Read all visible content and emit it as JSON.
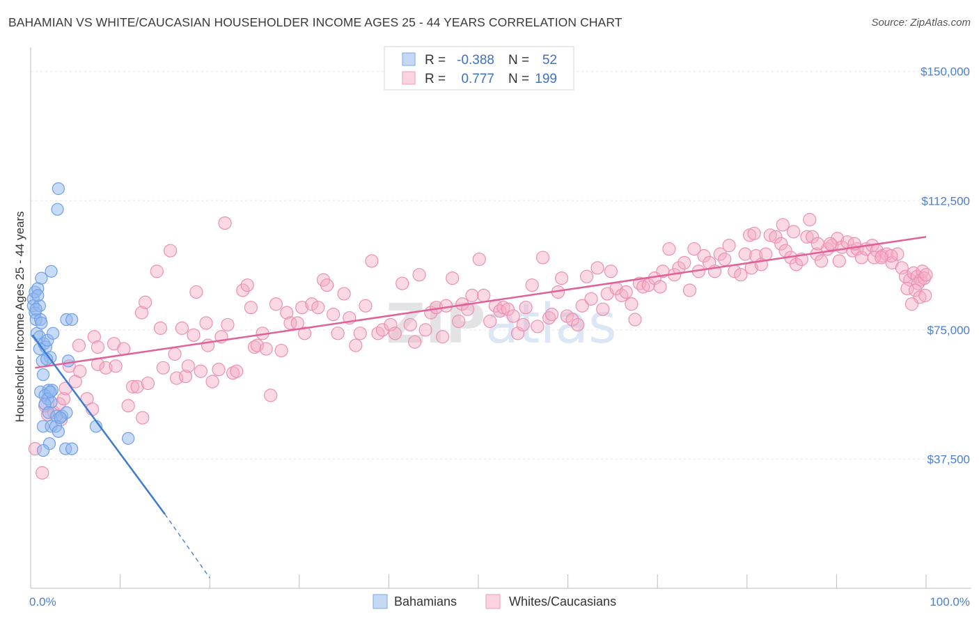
{
  "title": "BAHAMIAN VS WHITE/CAUCASIAN HOUSEHOLDER INCOME AGES 25 - 44 YEARS CORRELATION CHART",
  "source": "Source: ZipAtlas.com",
  "watermark": "ZIPatlas",
  "legend": {
    "rows": [
      {
        "r_label": "R =",
        "r_value": "-0.388",
        "n_label": "N =",
        "n_value": "52",
        "color": "#8fb8ef"
      },
      {
        "r_label": "R =",
        "r_value": "0.777",
        "n_label": "N =",
        "n_value": "199",
        "color": "#f4aac4"
      }
    ]
  },
  "bottom_legend": [
    {
      "label": "Bahamians",
      "color": "#8fb8ef"
    },
    {
      "label": "Whites/Caucasians",
      "color": "#f4aac4"
    }
  ],
  "chart_data": {
    "type": "scatter",
    "title": "BAHAMIAN VS WHITE/CAUCASIAN HOUSEHOLDER INCOME AGES 25 - 44 YEARS CORRELATION CHART",
    "xlabel": "",
    "ylabel": "Householder Income Ages 25 - 44 years",
    "xlim": [
      0,
      100
    ],
    "ylim": [
      0,
      155000
    ],
    "x_tick_labels": [
      "0.0%",
      "100.0%"
    ],
    "y_ticks": [
      37500,
      75000,
      112500,
      150000
    ],
    "y_tick_labels": [
      "$37,500",
      "$75,000",
      "$112,500",
      "$150,000"
    ],
    "series": [
      {
        "name": "Bahamians",
        "color": "#3a7bd5",
        "fill": "#8fb8ef",
        "R": -0.388,
        "N": 52,
        "trend": {
          "x": [
            0.2,
            15
          ],
          "y": [
            73500,
            21500
          ],
          "dashed_to": [
            20,
            3000
          ]
        },
        "points": [
          [
            0.3,
            84000
          ],
          [
            0.3,
            82000
          ],
          [
            0.5,
            86000
          ],
          [
            0.5,
            80000
          ],
          [
            0.6,
            78000
          ],
          [
            0.8,
            87000
          ],
          [
            1.0,
            82000
          ],
          [
            1.1,
            78000
          ],
          [
            0.7,
            74000
          ],
          [
            1.0,
            73000
          ],
          [
            1.0,
            69500
          ],
          [
            1.2,
            90000
          ],
          [
            1.5,
            71000
          ],
          [
            1.7,
            70000
          ],
          [
            1.9,
            72000
          ],
          [
            2.3,
            92000
          ],
          [
            2.5,
            74000
          ],
          [
            2.2,
            67000
          ],
          [
            1.3,
            66000
          ],
          [
            1.8,
            66500
          ],
          [
            1.4,
            62000
          ],
          [
            1.1,
            57000
          ],
          [
            2.0,
            57500
          ],
          [
            2.4,
            57500
          ],
          [
            1.6,
            56000
          ],
          [
            1.9,
            55000
          ],
          [
            2.3,
            54000
          ],
          [
            1.6,
            53500
          ],
          [
            2.2,
            57000
          ],
          [
            2.0,
            51000
          ],
          [
            2.9,
            50000
          ],
          [
            3.5,
            50000
          ],
          [
            4.0,
            51000
          ],
          [
            1.4,
            47000
          ],
          [
            2.3,
            47000
          ],
          [
            2.8,
            47000
          ],
          [
            3.3,
            49500
          ],
          [
            3.1,
            45500
          ],
          [
            7.3,
            47000
          ],
          [
            2.1,
            42000
          ],
          [
            1.4,
            40000
          ],
          [
            3.9,
            40500
          ],
          [
            4.6,
            40500
          ],
          [
            10.9,
            43500
          ],
          [
            4.0,
            78000
          ],
          [
            4.6,
            78000
          ],
          [
            3.0,
            110000
          ],
          [
            3.1,
            116000
          ],
          [
            0.8,
            85000
          ],
          [
            1.2,
            77000
          ],
          [
            4.2,
            66000
          ],
          [
            0.6,
            81000
          ]
        ]
      },
      {
        "name": "Whites/Caucasians",
        "color": "#e0609a",
        "fill": "#f4aac4",
        "R": 0.777,
        "N": 199,
        "trend": {
          "x": [
            0.5,
            100
          ],
          "y": [
            64000,
            102000
          ]
        },
        "points": [
          [
            0.5,
            40500
          ],
          [
            1.3,
            33500
          ],
          [
            1.9,
            50500
          ],
          [
            1.6,
            53000
          ],
          [
            2.6,
            51000
          ],
          [
            3.4,
            49000
          ],
          [
            3.2,
            53500
          ],
          [
            3.7,
            55000
          ],
          [
            3.9,
            58000
          ],
          [
            4.3,
            64500
          ],
          [
            5.0,
            60000
          ],
          [
            5.5,
            63000
          ],
          [
            5.4,
            70500
          ],
          [
            6.3,
            55000
          ],
          [
            6.9,
            52000
          ],
          [
            7.1,
            73000
          ],
          [
            7.5,
            65000
          ],
          [
            8.4,
            64000
          ],
          [
            7.5,
            70000
          ],
          [
            9.3,
            71000
          ],
          [
            9.5,
            64500
          ],
          [
            10.4,
            69500
          ],
          [
            10.9,
            53000
          ],
          [
            11.4,
            58500
          ],
          [
            11.9,
            58500
          ],
          [
            12.4,
            80000
          ],
          [
            12.8,
            83000
          ],
          [
            12.5,
            49500
          ],
          [
            13.1,
            59500
          ],
          [
            14.5,
            75500
          ],
          [
            14.8,
            64000
          ],
          [
            14.1,
            92000
          ],
          [
            15.6,
            98000
          ],
          [
            16.1,
            68000
          ],
          [
            16.3,
            61000
          ],
          [
            16.9,
            75500
          ],
          [
            17.3,
            61500
          ],
          [
            17.6,
            64500
          ],
          [
            18.2,
            73500
          ],
          [
            18.5,
            86000
          ],
          [
            19.0,
            63000
          ],
          [
            19.6,
            77000
          ],
          [
            19.8,
            70500
          ],
          [
            20.3,
            60000
          ],
          [
            21.3,
            73000
          ],
          [
            21.0,
            63500
          ],
          [
            21.7,
            106000
          ],
          [
            22.0,
            76500
          ],
          [
            22.6,
            62500
          ],
          [
            23.0,
            63000
          ],
          [
            23.7,
            86500
          ],
          [
            24.2,
            88000
          ],
          [
            24.6,
            81500
          ],
          [
            25.0,
            70000
          ],
          [
            25.3,
            70500
          ],
          [
            25.9,
            74000
          ],
          [
            26.3,
            69500
          ],
          [
            26.8,
            56000
          ],
          [
            27.4,
            82500
          ],
          [
            28.0,
            69000
          ],
          [
            28.6,
            80000
          ],
          [
            29.0,
            77000
          ],
          [
            29.8,
            77000
          ],
          [
            30.3,
            81500
          ],
          [
            30.6,
            74000
          ],
          [
            31.4,
            82500
          ],
          [
            32.1,
            81500
          ],
          [
            32.7,
            89500
          ],
          [
            33.1,
            88000
          ],
          [
            33.8,
            79500
          ],
          [
            34.3,
            74000
          ],
          [
            35.0,
            85500
          ],
          [
            35.6,
            78500
          ],
          [
            36.3,
            70500
          ],
          [
            36.8,
            74000
          ],
          [
            37.4,
            82000
          ],
          [
            38.1,
            95000
          ],
          [
            38.8,
            74000
          ],
          [
            39.3,
            75000
          ],
          [
            40.2,
            76500
          ],
          [
            40.7,
            74000
          ],
          [
            41.5,
            88500
          ],
          [
            42.4,
            76500
          ],
          [
            42.9,
            71500
          ],
          [
            43.4,
            91000
          ],
          [
            44.1,
            75000
          ],
          [
            44.7,
            80000
          ],
          [
            45.3,
            81500
          ],
          [
            46.0,
            73000
          ],
          [
            46.4,
            82000
          ],
          [
            47.1,
            90000
          ],
          [
            47.8,
            77500
          ],
          [
            48.2,
            82500
          ],
          [
            48.8,
            81000
          ],
          [
            49.3,
            85000
          ],
          [
            50.1,
            95500
          ],
          [
            50.6,
            85000
          ],
          [
            51.3,
            77500
          ],
          [
            51.9,
            82000
          ],
          [
            52.4,
            80500
          ],
          [
            52.8,
            81500
          ],
          [
            53.3,
            81000
          ],
          [
            53.9,
            79000
          ],
          [
            54.4,
            74000
          ],
          [
            55.0,
            76500
          ],
          [
            55.3,
            81500
          ],
          [
            56.0,
            88000
          ],
          [
            56.6,
            76000
          ],
          [
            57.2,
            96000
          ],
          [
            57.9,
            78500
          ],
          [
            58.2,
            79500
          ],
          [
            58.9,
            86000
          ],
          [
            59.3,
            90000
          ],
          [
            59.9,
            79000
          ],
          [
            60.5,
            78000
          ],
          [
            61.1,
            76500
          ],
          [
            61.6,
            82000
          ],
          [
            62.1,
            90500
          ],
          [
            62.6,
            84000
          ],
          [
            63.3,
            93000
          ],
          [
            63.9,
            81000
          ],
          [
            64.4,
            85500
          ],
          [
            64.8,
            92000
          ],
          [
            65.4,
            87000
          ],
          [
            66.0,
            85000
          ],
          [
            66.5,
            86000
          ],
          [
            67.1,
            82500
          ],
          [
            67.5,
            78000
          ],
          [
            68.0,
            88500
          ],
          [
            68.4,
            87500
          ],
          [
            69.0,
            88000
          ],
          [
            69.7,
            90000
          ],
          [
            70.3,
            87500
          ],
          [
            70.6,
            92000
          ],
          [
            71.3,
            98500
          ],
          [
            71.9,
            91000
          ],
          [
            72.4,
            93000
          ],
          [
            73.0,
            94500
          ],
          [
            73.6,
            86500
          ],
          [
            74.1,
            98500
          ],
          [
            74.6,
            92000
          ],
          [
            75.2,
            96500
          ],
          [
            75.8,
            94500
          ],
          [
            76.4,
            92000
          ],
          [
            77.0,
            97000
          ],
          [
            77.5,
            95500
          ],
          [
            78.0,
            99500
          ],
          [
            78.6,
            92000
          ],
          [
            79.3,
            91000
          ],
          [
            79.8,
            97000
          ],
          [
            80.5,
            93000
          ],
          [
            81.0,
            96500
          ],
          [
            81.6,
            94000
          ],
          [
            82.1,
            97000
          ],
          [
            82.6,
            102500
          ],
          [
            83.2,
            102000
          ],
          [
            83.8,
            100000
          ],
          [
            84.3,
            98000
          ],
          [
            84.9,
            96000
          ],
          [
            85.5,
            94000
          ],
          [
            86.1,
            95500
          ],
          [
            86.7,
            102000
          ],
          [
            87.3,
            102000
          ],
          [
            87.8,
            97000
          ],
          [
            88.3,
            95000
          ],
          [
            89.0,
            98500
          ],
          [
            89.5,
            99500
          ],
          [
            90.1,
            101500
          ],
          [
            90.6,
            99000
          ],
          [
            91.2,
            100500
          ],
          [
            91.8,
            98000
          ],
          [
            92.3,
            98500
          ],
          [
            92.8,
            96000
          ],
          [
            93.3,
            98500
          ],
          [
            94.0,
            99500
          ],
          [
            94.5,
            98000
          ],
          [
            95.1,
            96500
          ],
          [
            95.6,
            97000
          ],
          [
            96.2,
            94500
          ],
          [
            96.8,
            97000
          ],
          [
            97.3,
            93000
          ],
          [
            97.7,
            90500
          ],
          [
            98.2,
            89500
          ],
          [
            98.6,
            91500
          ],
          [
            99.0,
            90500
          ],
          [
            99.4,
            89500
          ],
          [
            99.6,
            92000
          ],
          [
            99.1,
            88500
          ],
          [
            99.8,
            90000
          ],
          [
            87.0,
            107000
          ],
          [
            84.0,
            105500
          ],
          [
            80.3,
            102500
          ],
          [
            80.8,
            103000
          ],
          [
            85.2,
            103500
          ],
          [
            94.2,
            96000
          ],
          [
            96.1,
            96500
          ],
          [
            97.9,
            87000
          ],
          [
            98.8,
            86500
          ],
          [
            99.3,
            84500
          ],
          [
            98.4,
            82500
          ],
          [
            99.9,
            85000
          ],
          [
            100.0,
            91000
          ],
          [
            87.9,
            100000
          ],
          [
            95.0,
            96000
          ],
          [
            89.3,
            100000
          ],
          [
            90.3,
            95000
          ],
          [
            92.0,
            100000
          ]
        ]
      }
    ]
  }
}
